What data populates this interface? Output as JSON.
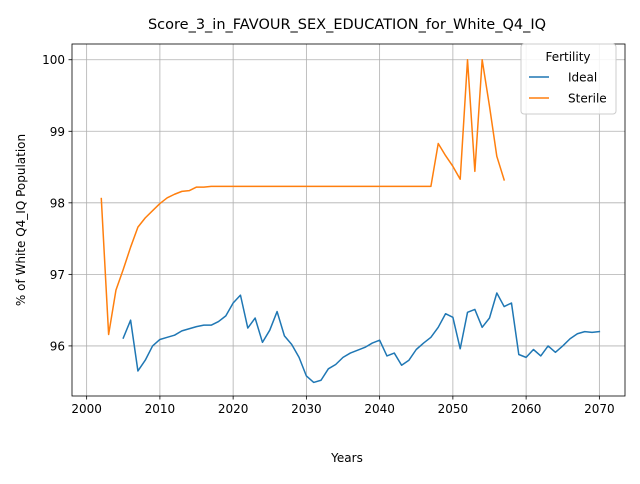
{
  "chart_data": {
    "type": "line",
    "title": "Score_3_in_FAVOUR_SEX_EDUCATION_for_White_Q4_IQ",
    "xlabel": "Years",
    "ylabel": "% of White Q4_IQ Population",
    "xlim": [
      1998,
      2073.5
    ],
    "ylim": [
      95.3,
      100.22
    ],
    "xticks": [
      2000,
      2010,
      2020,
      2030,
      2040,
      2050,
      2060,
      2070
    ],
    "yticks": [
      96,
      97,
      98,
      99,
      100
    ],
    "grid": true,
    "legend": {
      "title": "Fertility",
      "placement": "top-right"
    },
    "series": [
      {
        "name": "Ideal",
        "color": "#1f77b4",
        "x": [
          2005,
          2006,
          2007,
          2008,
          2009,
          2010,
          2011,
          2012,
          2013,
          2014,
          2015,
          2016,
          2017,
          2018,
          2019,
          2020,
          2021,
          2022,
          2023,
          2024,
          2025,
          2026,
          2027,
          2028,
          2029,
          2030,
          2031,
          2032,
          2033,
          2034,
          2035,
          2036,
          2037,
          2038,
          2039,
          2040,
          2041,
          2042,
          2043,
          2044,
          2045,
          2046,
          2047,
          2048,
          2049,
          2050,
          2051,
          2052,
          2053,
          2054,
          2055,
          2056,
          2057,
          2058,
          2059,
          2060,
          2061,
          2062,
          2063,
          2064,
          2065,
          2066,
          2067,
          2068,
          2069,
          2070
        ],
        "y": [
          96.11,
          96.36,
          95.65,
          95.8,
          96.0,
          96.09,
          96.12,
          96.15,
          96.21,
          96.24,
          96.27,
          96.29,
          96.29,
          96.34,
          96.42,
          96.6,
          96.71,
          96.25,
          96.39,
          96.05,
          96.22,
          96.48,
          96.14,
          96.02,
          95.84,
          95.58,
          95.49,
          95.52,
          95.68,
          95.74,
          95.84,
          95.9,
          95.94,
          95.98,
          96.04,
          96.08,
          95.86,
          95.9,
          95.73,
          95.8,
          95.95,
          96.04,
          96.12,
          96.26,
          96.45,
          96.4,
          95.96,
          96.47,
          96.51,
          96.26,
          96.39,
          96.74,
          96.55,
          96.6,
          95.88,
          95.84,
          95.95,
          95.86,
          96.0,
          95.91,
          96.0,
          96.1,
          96.17,
          96.2,
          96.19,
          96.2
        ]
      },
      {
        "name": "Sterile",
        "color": "#ff7f0e",
        "x": [
          2002,
          2003,
          2004,
          2005,
          2006,
          2007,
          2008,
          2009,
          2010,
          2011,
          2012,
          2013,
          2014,
          2015,
          2016,
          2017,
          2018,
          2019,
          2020,
          2021,
          2022,
          2023,
          2024,
          2025,
          2026,
          2027,
          2028,
          2029,
          2030,
          2031,
          2032,
          2033,
          2034,
          2035,
          2036,
          2037,
          2038,
          2039,
          2040,
          2041,
          2042,
          2043,
          2044,
          2045,
          2046,
          2047,
          2048,
          2049,
          2050,
          2051,
          2052,
          2053,
          2054,
          2055,
          2056,
          2057
        ],
        "y": [
          98.06,
          96.16,
          96.78,
          97.07,
          97.38,
          97.66,
          97.79,
          97.89,
          97.99,
          98.07,
          98.12,
          98.16,
          98.17,
          98.22,
          98.22,
          98.23,
          98.23,
          98.23,
          98.23,
          98.23,
          98.23,
          98.23,
          98.23,
          98.23,
          98.23,
          98.23,
          98.23,
          98.23,
          98.23,
          98.23,
          98.23,
          98.23,
          98.23,
          98.23,
          98.23,
          98.23,
          98.23,
          98.23,
          98.23,
          98.23,
          98.23,
          98.23,
          98.23,
          98.23,
          98.23,
          98.23,
          98.83,
          98.66,
          98.51,
          98.33,
          100.0,
          98.44,
          100.0,
          99.35,
          98.65,
          98.32
        ]
      }
    ]
  }
}
